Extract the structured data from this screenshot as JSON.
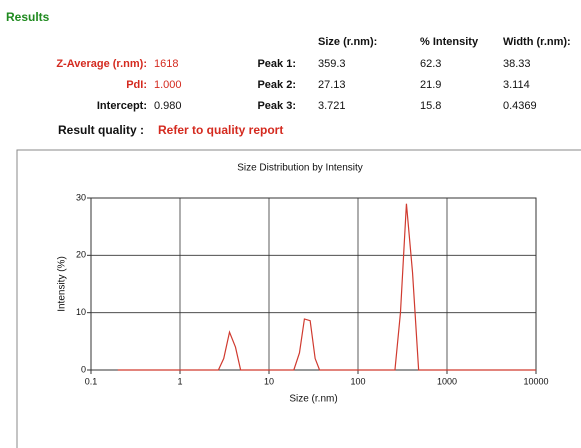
{
  "header": {
    "title": "Results"
  },
  "summary": [
    {
      "label": "Z-Average (r.nm):",
      "value": "1618"
    },
    {
      "label": "PdI:",
      "value": "1.000"
    },
    {
      "label": "Intercept:",
      "value": "0.980"
    }
  ],
  "peaks": {
    "columns": [
      "Size (r.nm):",
      "% Intensity",
      "Width (r.nm):"
    ],
    "rows": [
      {
        "label": "Peak 1:",
        "cells": [
          "359.3",
          "62.3",
          "38.33"
        ]
      },
      {
        "label": "Peak 2:",
        "cells": [
          "27.13",
          "21.9",
          "3.114"
        ]
      },
      {
        "label": "Peak 3:",
        "cells": [
          "3.721",
          "15.8",
          "0.4369"
        ]
      }
    ]
  },
  "quality": {
    "label": "Result quality :",
    "value": "Refer to quality report"
  },
  "chart_data": {
    "type": "line",
    "title": "Size Distribution by Intensity",
    "xlabel": "Size (r.nm)",
    "ylabel": "Intensity (%)",
    "xscale": "log",
    "x": [
      0.2,
      2.7,
      3.1,
      3.6,
      4.2,
      4.8,
      19,
      22,
      25,
      29,
      33,
      37,
      260,
      300,
      350,
      410,
      480,
      10000
    ],
    "values": [
      0,
      0,
      2,
      6.6,
      4,
      0,
      0,
      3,
      8.9,
      8.6,
      2,
      0,
      0,
      10,
      29,
      17,
      0,
      0
    ],
    "color": "#d03a2f",
    "xlim": [
      0.1,
      10000
    ],
    "ylim": [
      0,
      30
    ],
    "xticks": [
      0.1,
      1,
      10,
      100,
      1000,
      10000
    ],
    "yticks": [
      0,
      10,
      20,
      30
    ],
    "grid": true
  }
}
